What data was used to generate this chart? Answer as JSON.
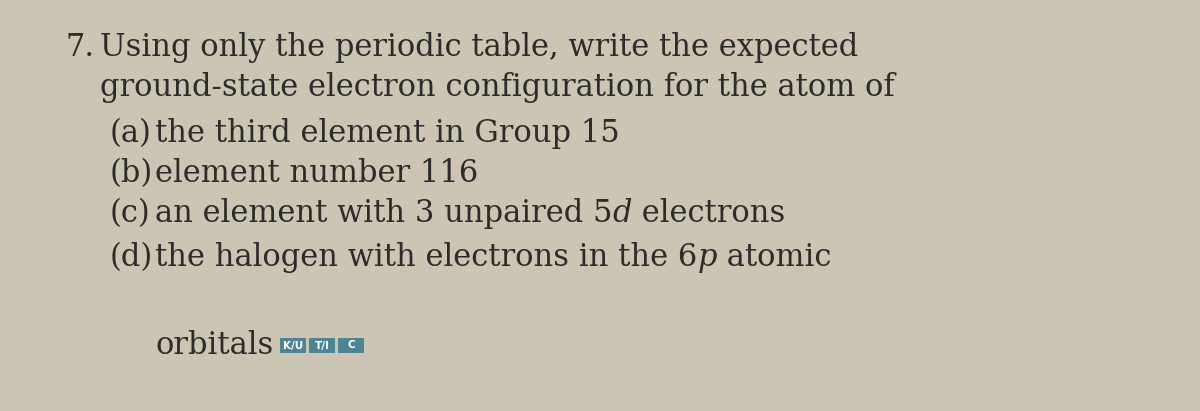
{
  "background_color": "#cdc5b4",
  "text_color": "#2c2c2c",
  "number": "7.",
  "main_line1": "Using only the periodic table, write the expected",
  "main_line2": "ground-state electron configuration for the atom of",
  "items": [
    {
      "label": "(a)",
      "text": "the third element in Group 15",
      "has_italic": false
    },
    {
      "label": "(b)",
      "text": "element number 116",
      "has_italic": false
    },
    {
      "label": "(c)",
      "text_before": "an element with 3 unpaired 5",
      "italic": "d",
      "text_after": " electrons",
      "has_italic": true
    },
    {
      "label": "(d)",
      "text_before": "the halogen with electrons in the 6",
      "italic": "p",
      "text_after": " atomic",
      "has_italic": true
    }
  ],
  "last_line": "orbitals",
  "badges": [
    {
      "text": "K/U",
      "bg": "#4e8595",
      "fg": "#ffffff"
    },
    {
      "text": "T/I",
      "bg": "#4e8595",
      "fg": "#ffffff"
    },
    {
      "text": "C",
      "bg": "#4e8595",
      "fg": "#ffffff"
    }
  ],
  "font_size_main": 22,
  "font_size_items": 22,
  "badge_font_size": 7.5,
  "figsize": [
    12.0,
    4.11
  ]
}
